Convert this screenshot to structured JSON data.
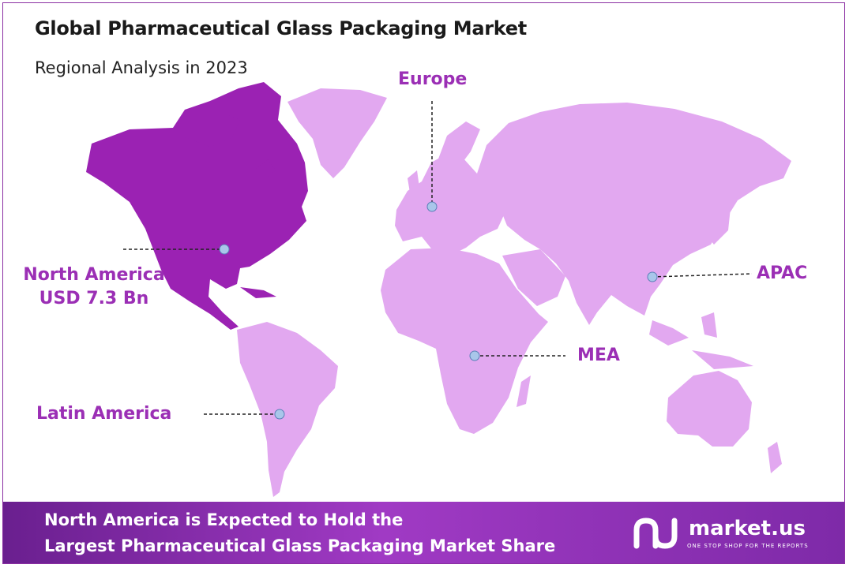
{
  "title": "Global Pharmaceutical Glass Packaging Market",
  "subtitle": "Regional Analysis in 2023",
  "regions": {
    "europe": {
      "label": "Europe"
    },
    "north_america": {
      "label": "North America",
      "value": "USD 7.3 Bn",
      "highlighted": true
    },
    "apac": {
      "label": "APAC"
    },
    "mea": {
      "label": "MEA"
    },
    "latin_america": {
      "label": "Latin America"
    }
  },
  "colors": {
    "highlight": "#9b22b3",
    "land": "#e2a8f0",
    "label": "#9b2fb5",
    "marker": "#a9c6ea"
  },
  "banner": {
    "line1": "North America is Expected to Hold the",
    "line2": "Largest Pharmaceutical Glass Packaging Market Share"
  },
  "logo": {
    "name": "market.us",
    "tagline": "ONE STOP SHOP FOR THE REPORTS",
    "icon": "market-us-logo-icon"
  }
}
